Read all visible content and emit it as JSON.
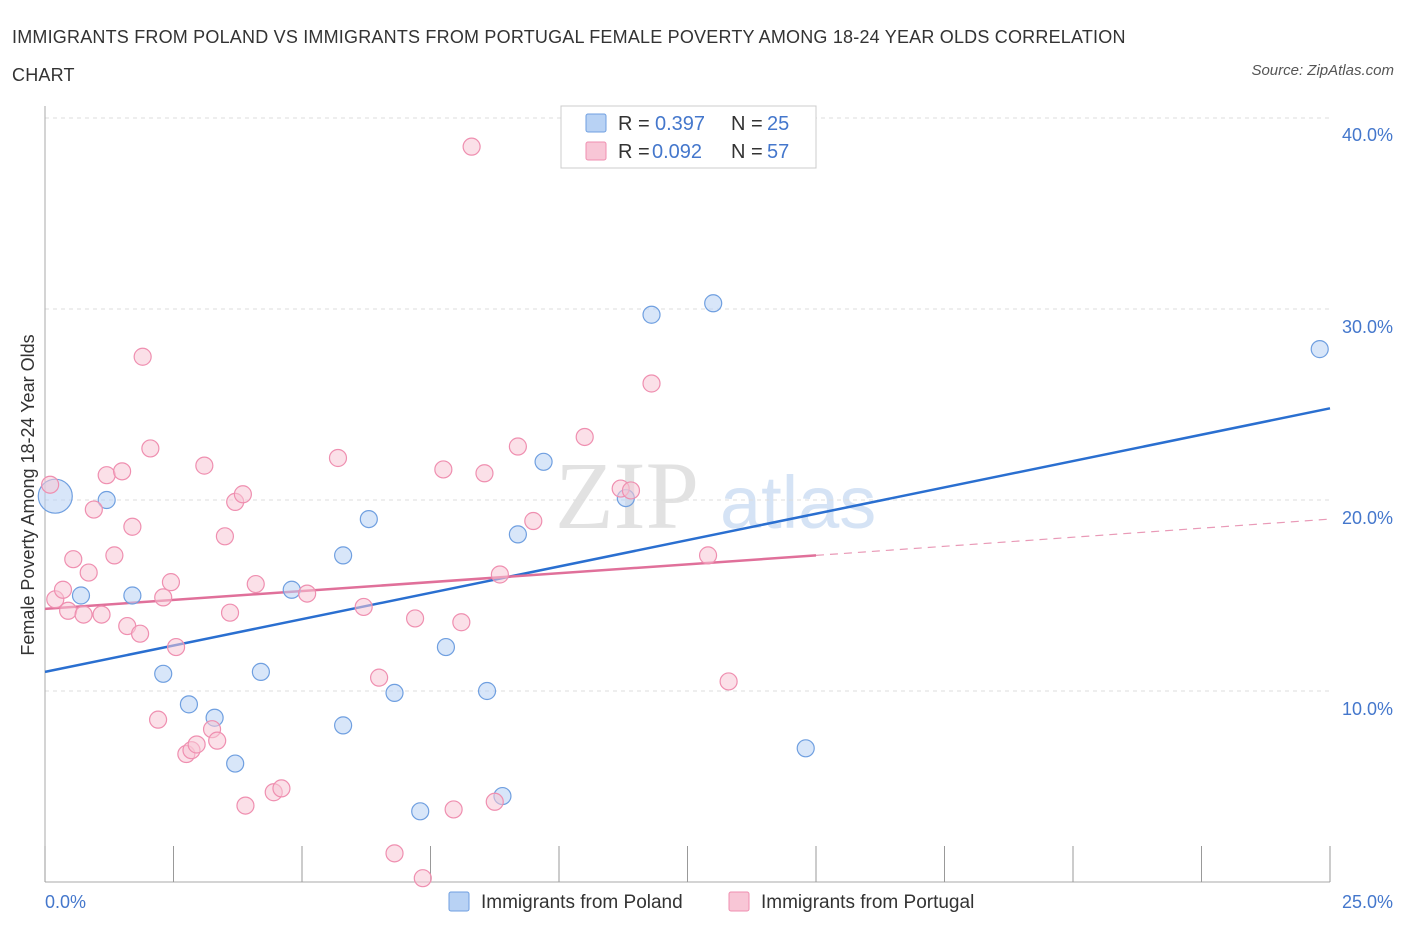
{
  "title": "IMMIGRANTS FROM POLAND VS IMMIGRANTS FROM PORTUGAL FEMALE POVERTY AMONG 18-24 YEAR OLDS CORRELATION CHART",
  "source": "Source: ZipAtlas.com",
  "watermark": {
    "zip": "ZIP",
    "atlas": "atlas"
  },
  "colors": {
    "poland": "#6f9fe0",
    "poland_fill": "#b8d2f4",
    "poland_line": "#2a6fd0",
    "portugal": "#ef8fb0",
    "portugal_fill": "#f8c6d6",
    "portugal_line": "#e0709a",
    "axis_label": "#4477cc"
  },
  "legend": {
    "poland": {
      "r_label": "R =",
      "r_value": "0.397",
      "n_label": "N =",
      "n_value": "25"
    },
    "portugal": {
      "r_label": "R =",
      "r_value": "0.092",
      "n_label": "N =",
      "n_value": "57"
    }
  },
  "chart_data": {
    "type": "scatter",
    "title": "IMMIGRANTS FROM POLAND VS IMMIGRANTS FROM PORTUGAL FEMALE POVERTY AMONG 18-24 YEAR OLDS CORRELATION CHART",
    "xlabel": "",
    "ylabel": "Female Poverty Among 18-24 Year Olds",
    "xlim": [
      0,
      25
    ],
    "ylim": [
      0,
      40
    ],
    "x_tick_labels": [
      {
        "value": 0,
        "label": "0.0%"
      },
      {
        "value": 25,
        "label": "25.0%"
      }
    ],
    "y_tick_labels": [
      {
        "value": 10,
        "label": "10.0%"
      },
      {
        "value": 20,
        "label": "20.0%"
      },
      {
        "value": 30,
        "label": "30.0%"
      },
      {
        "value": 40,
        "label": "40.0%"
      }
    ],
    "legend_position": "top-center",
    "series": [
      {
        "name": "Immigrants from Poland",
        "key": "poland",
        "r": 0.397,
        "n": 25,
        "trend": {
          "x0": 0,
          "y0": 11.0,
          "x1": 25,
          "y1": 24.8
        },
        "points": [
          {
            "x": 0.2,
            "y": 20.2,
            "big": true
          },
          {
            "x": 0.7,
            "y": 15.0
          },
          {
            "x": 1.2,
            "y": 20.0
          },
          {
            "x": 1.7,
            "y": 15.0
          },
          {
            "x": 2.3,
            "y": 10.9
          },
          {
            "x": 2.8,
            "y": 9.3
          },
          {
            "x": 3.3,
            "y": 8.6
          },
          {
            "x": 3.7,
            "y": 6.2
          },
          {
            "x": 4.2,
            "y": 11.0
          },
          {
            "x": 4.8,
            "y": 15.3
          },
          {
            "x": 5.8,
            "y": 17.1
          },
          {
            "x": 5.8,
            "y": 8.2
          },
          {
            "x": 6.3,
            "y": 19.0
          },
          {
            "x": 6.8,
            "y": 9.9
          },
          {
            "x": 7.3,
            "y": 3.7
          },
          {
            "x": 7.8,
            "y": 12.3
          },
          {
            "x": 8.6,
            "y": 10.0
          },
          {
            "x": 8.9,
            "y": 4.5
          },
          {
            "x": 9.2,
            "y": 18.2
          },
          {
            "x": 9.7,
            "y": 22.0
          },
          {
            "x": 11.3,
            "y": 20.1
          },
          {
            "x": 11.8,
            "y": 29.7
          },
          {
            "x": 13.0,
            "y": 30.3
          },
          {
            "x": 14.8,
            "y": 7.0
          },
          {
            "x": 24.8,
            "y": 27.9
          }
        ]
      },
      {
        "name": "Immigrants from Portugal",
        "key": "portugal",
        "r": 0.092,
        "n": 57,
        "trend": {
          "x0": 0,
          "y0": 14.3,
          "x1": 15.0,
          "y1": 17.1
        },
        "trend_dashed": {
          "x0": 15.0,
          "y0": 17.1,
          "x1": 25,
          "y1": 19.0
        },
        "points": [
          {
            "x": 0.1,
            "y": 20.8
          },
          {
            "x": 0.2,
            "y": 14.8
          },
          {
            "x": 0.35,
            "y": 15.3
          },
          {
            "x": 0.45,
            "y": 14.2
          },
          {
            "x": 0.55,
            "y": 16.9
          },
          {
            "x": 0.75,
            "y": 14.0
          },
          {
            "x": 0.85,
            "y": 16.2
          },
          {
            "x": 0.95,
            "y": 19.5
          },
          {
            "x": 1.1,
            "y": 14.0
          },
          {
            "x": 1.2,
            "y": 21.3
          },
          {
            "x": 1.35,
            "y": 17.1
          },
          {
            "x": 1.5,
            "y": 21.5
          },
          {
            "x": 1.6,
            "y": 13.4
          },
          {
            "x": 1.7,
            "y": 18.6
          },
          {
            "x": 1.85,
            "y": 13.0
          },
          {
            "x": 1.9,
            "y": 27.5
          },
          {
            "x": 2.05,
            "y": 22.7
          },
          {
            "x": 2.2,
            "y": 8.5
          },
          {
            "x": 2.3,
            "y": 14.9
          },
          {
            "x": 2.45,
            "y": 15.7
          },
          {
            "x": 2.55,
            "y": 12.3
          },
          {
            "x": 2.75,
            "y": 6.7
          },
          {
            "x": 2.85,
            "y": 6.9
          },
          {
            "x": 2.95,
            "y": 7.2
          },
          {
            "x": 3.1,
            "y": 21.8
          },
          {
            "x": 3.25,
            "y": 8.0
          },
          {
            "x": 3.35,
            "y": 7.4
          },
          {
            "x": 3.5,
            "y": 18.1
          },
          {
            "x": 3.6,
            "y": 14.1
          },
          {
            "x": 3.7,
            "y": 19.9
          },
          {
            "x": 3.85,
            "y": 20.3
          },
          {
            "x": 3.9,
            "y": 4.0
          },
          {
            "x": 4.1,
            "y": 15.6
          },
          {
            "x": 4.45,
            "y": 4.7
          },
          {
            "x": 4.6,
            "y": 4.9
          },
          {
            "x": 5.1,
            "y": 15.1
          },
          {
            "x": 5.7,
            "y": 22.2
          },
          {
            "x": 6.2,
            "y": 14.4
          },
          {
            "x": 6.5,
            "y": 10.7
          },
          {
            "x": 6.8,
            "y": 1.5
          },
          {
            "x": 7.2,
            "y": 13.8
          },
          {
            "x": 7.35,
            "y": 0.2
          },
          {
            "x": 7.75,
            "y": 21.6
          },
          {
            "x": 7.95,
            "y": 3.8
          },
          {
            "x": 8.1,
            "y": 13.6
          },
          {
            "x": 8.3,
            "y": 38.5
          },
          {
            "x": 8.55,
            "y": 21.4
          },
          {
            "x": 8.75,
            "y": 4.2
          },
          {
            "x": 8.85,
            "y": 16.1
          },
          {
            "x": 9.2,
            "y": 22.8
          },
          {
            "x": 9.5,
            "y": 18.9
          },
          {
            "x": 10.5,
            "y": 23.3
          },
          {
            "x": 11.2,
            "y": 20.6
          },
          {
            "x": 11.4,
            "y": 20.5
          },
          {
            "x": 11.8,
            "y": 26.1
          },
          {
            "x": 12.9,
            "y": 17.1
          },
          {
            "x": 13.3,
            "y": 10.5
          }
        ]
      }
    ]
  },
  "bottom_legend": {
    "poland_label": "Immigrants from Poland",
    "portugal_label": "Immigrants from Portugal"
  }
}
